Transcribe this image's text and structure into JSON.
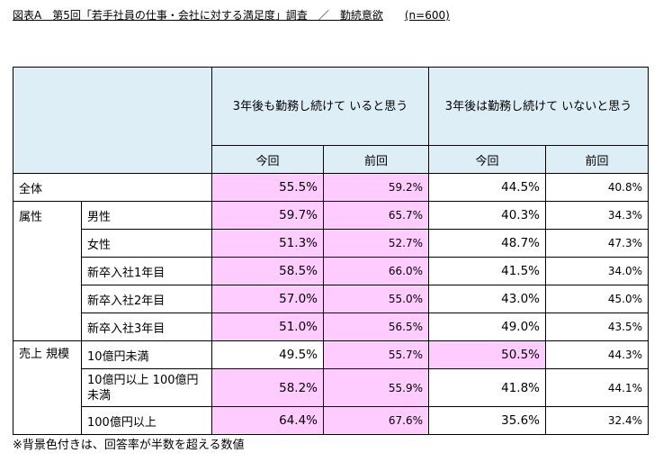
{
  "title": "図表A　第5回「若手社員の仕事・会社に対する満足度」調査　／　勤続意欲",
  "n": "(n=600)",
  "group_headers": [
    "3年後も勤務し続けて いると思う",
    "3年後は勤務し続けて いないと思う"
  ],
  "sub_headers": [
    "今回",
    "前回",
    "今回",
    "前回"
  ],
  "sections": [
    {
      "label": "全体"
    },
    {
      "label": "属性"
    },
    {
      "label": "売上 規模"
    }
  ],
  "rows": [
    {
      "label": "全体",
      "values": [
        "55.5%",
        "59.2%",
        "44.5%",
        "40.8%"
      ],
      "highlight": [
        true,
        true,
        false,
        false
      ]
    },
    {
      "label": "男性",
      "values": [
        "59.7%",
        "65.7%",
        "40.3%",
        "34.3%"
      ],
      "highlight": [
        true,
        true,
        false,
        false
      ]
    },
    {
      "label": "女性",
      "values": [
        "51.3%",
        "52.7%",
        "48.7%",
        "47.3%"
      ],
      "highlight": [
        true,
        true,
        false,
        false
      ]
    },
    {
      "label": "新卒入社1年目",
      "values": [
        "58.5%",
        "66.0%",
        "41.5%",
        "34.0%"
      ],
      "highlight": [
        true,
        true,
        false,
        false
      ]
    },
    {
      "label": "新卒入社2年目",
      "values": [
        "57.0%",
        "55.0%",
        "43.0%",
        "45.0%"
      ],
      "highlight": [
        true,
        true,
        false,
        false
      ]
    },
    {
      "label": "新卒入社3年目",
      "values": [
        "51.0%",
        "56.5%",
        "49.0%",
        "43.5%"
      ],
      "highlight": [
        true,
        true,
        false,
        false
      ]
    },
    {
      "label": "10億円未満",
      "values": [
        "49.5%",
        "55.7%",
        "50.5%",
        "44.3%"
      ],
      "highlight": [
        false,
        true,
        true,
        false
      ]
    },
    {
      "label": "10億円以上 100億円未満",
      "values": [
        "58.2%",
        "55.9%",
        "41.8%",
        "44.1%"
      ],
      "highlight": [
        true,
        true,
        false,
        false
      ]
    },
    {
      "label": "100億円以上",
      "values": [
        "64.4%",
        "67.6%",
        "35.6%",
        "32.4%"
      ],
      "highlight": [
        true,
        true,
        false,
        false
      ]
    }
  ],
  "note": "※背景色付きは、回答率が半数を超える数値",
  "colors": {
    "header_bg": "#ddeef6",
    "highlight_bg": "#ffccff",
    "border": "#000000"
  }
}
